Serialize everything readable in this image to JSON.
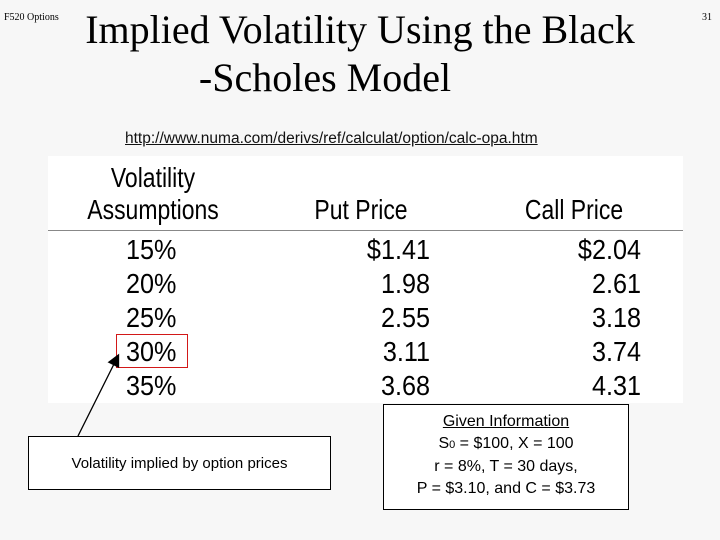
{
  "header": {
    "left_label": "F520 Options",
    "slide_number": "31",
    "title_line1": "Implied Volatility Using the Black",
    "title_line2": "-Scholes Model"
  },
  "source_url": "http://www.numa.com/derivs/ref/calculat/option/calc-opa.htm",
  "table": {
    "header_volatility_line1": "Volatility",
    "header_volatility_line2": "Assumptions",
    "header_put": "Put Price",
    "header_call": "Call Price",
    "rows": [
      {
        "vol": "15%",
        "put": "$1.41",
        "call": "$2.04"
      },
      {
        "vol": "20%",
        "put": "1.98",
        "call": "2.61"
      },
      {
        "vol": "25%",
        "put": "2.55",
        "call": "3.18"
      },
      {
        "vol": "30%",
        "put": "3.11",
        "call": "3.74"
      },
      {
        "vol": "35%",
        "put": "3.68",
        "call": "4.31"
      }
    ]
  },
  "note": "Volatility implied by option prices",
  "given": {
    "title": "Given Information",
    "line1_s": "S",
    "line1_sub": "0",
    "line1_rest": " = $100, X = 100",
    "line2": "r = 8%, T = 30 days,",
    "line3": "P = $3.10, and C = $3.73"
  },
  "colors": {
    "highlight": "#d21818",
    "background": "#f7f7f7"
  }
}
